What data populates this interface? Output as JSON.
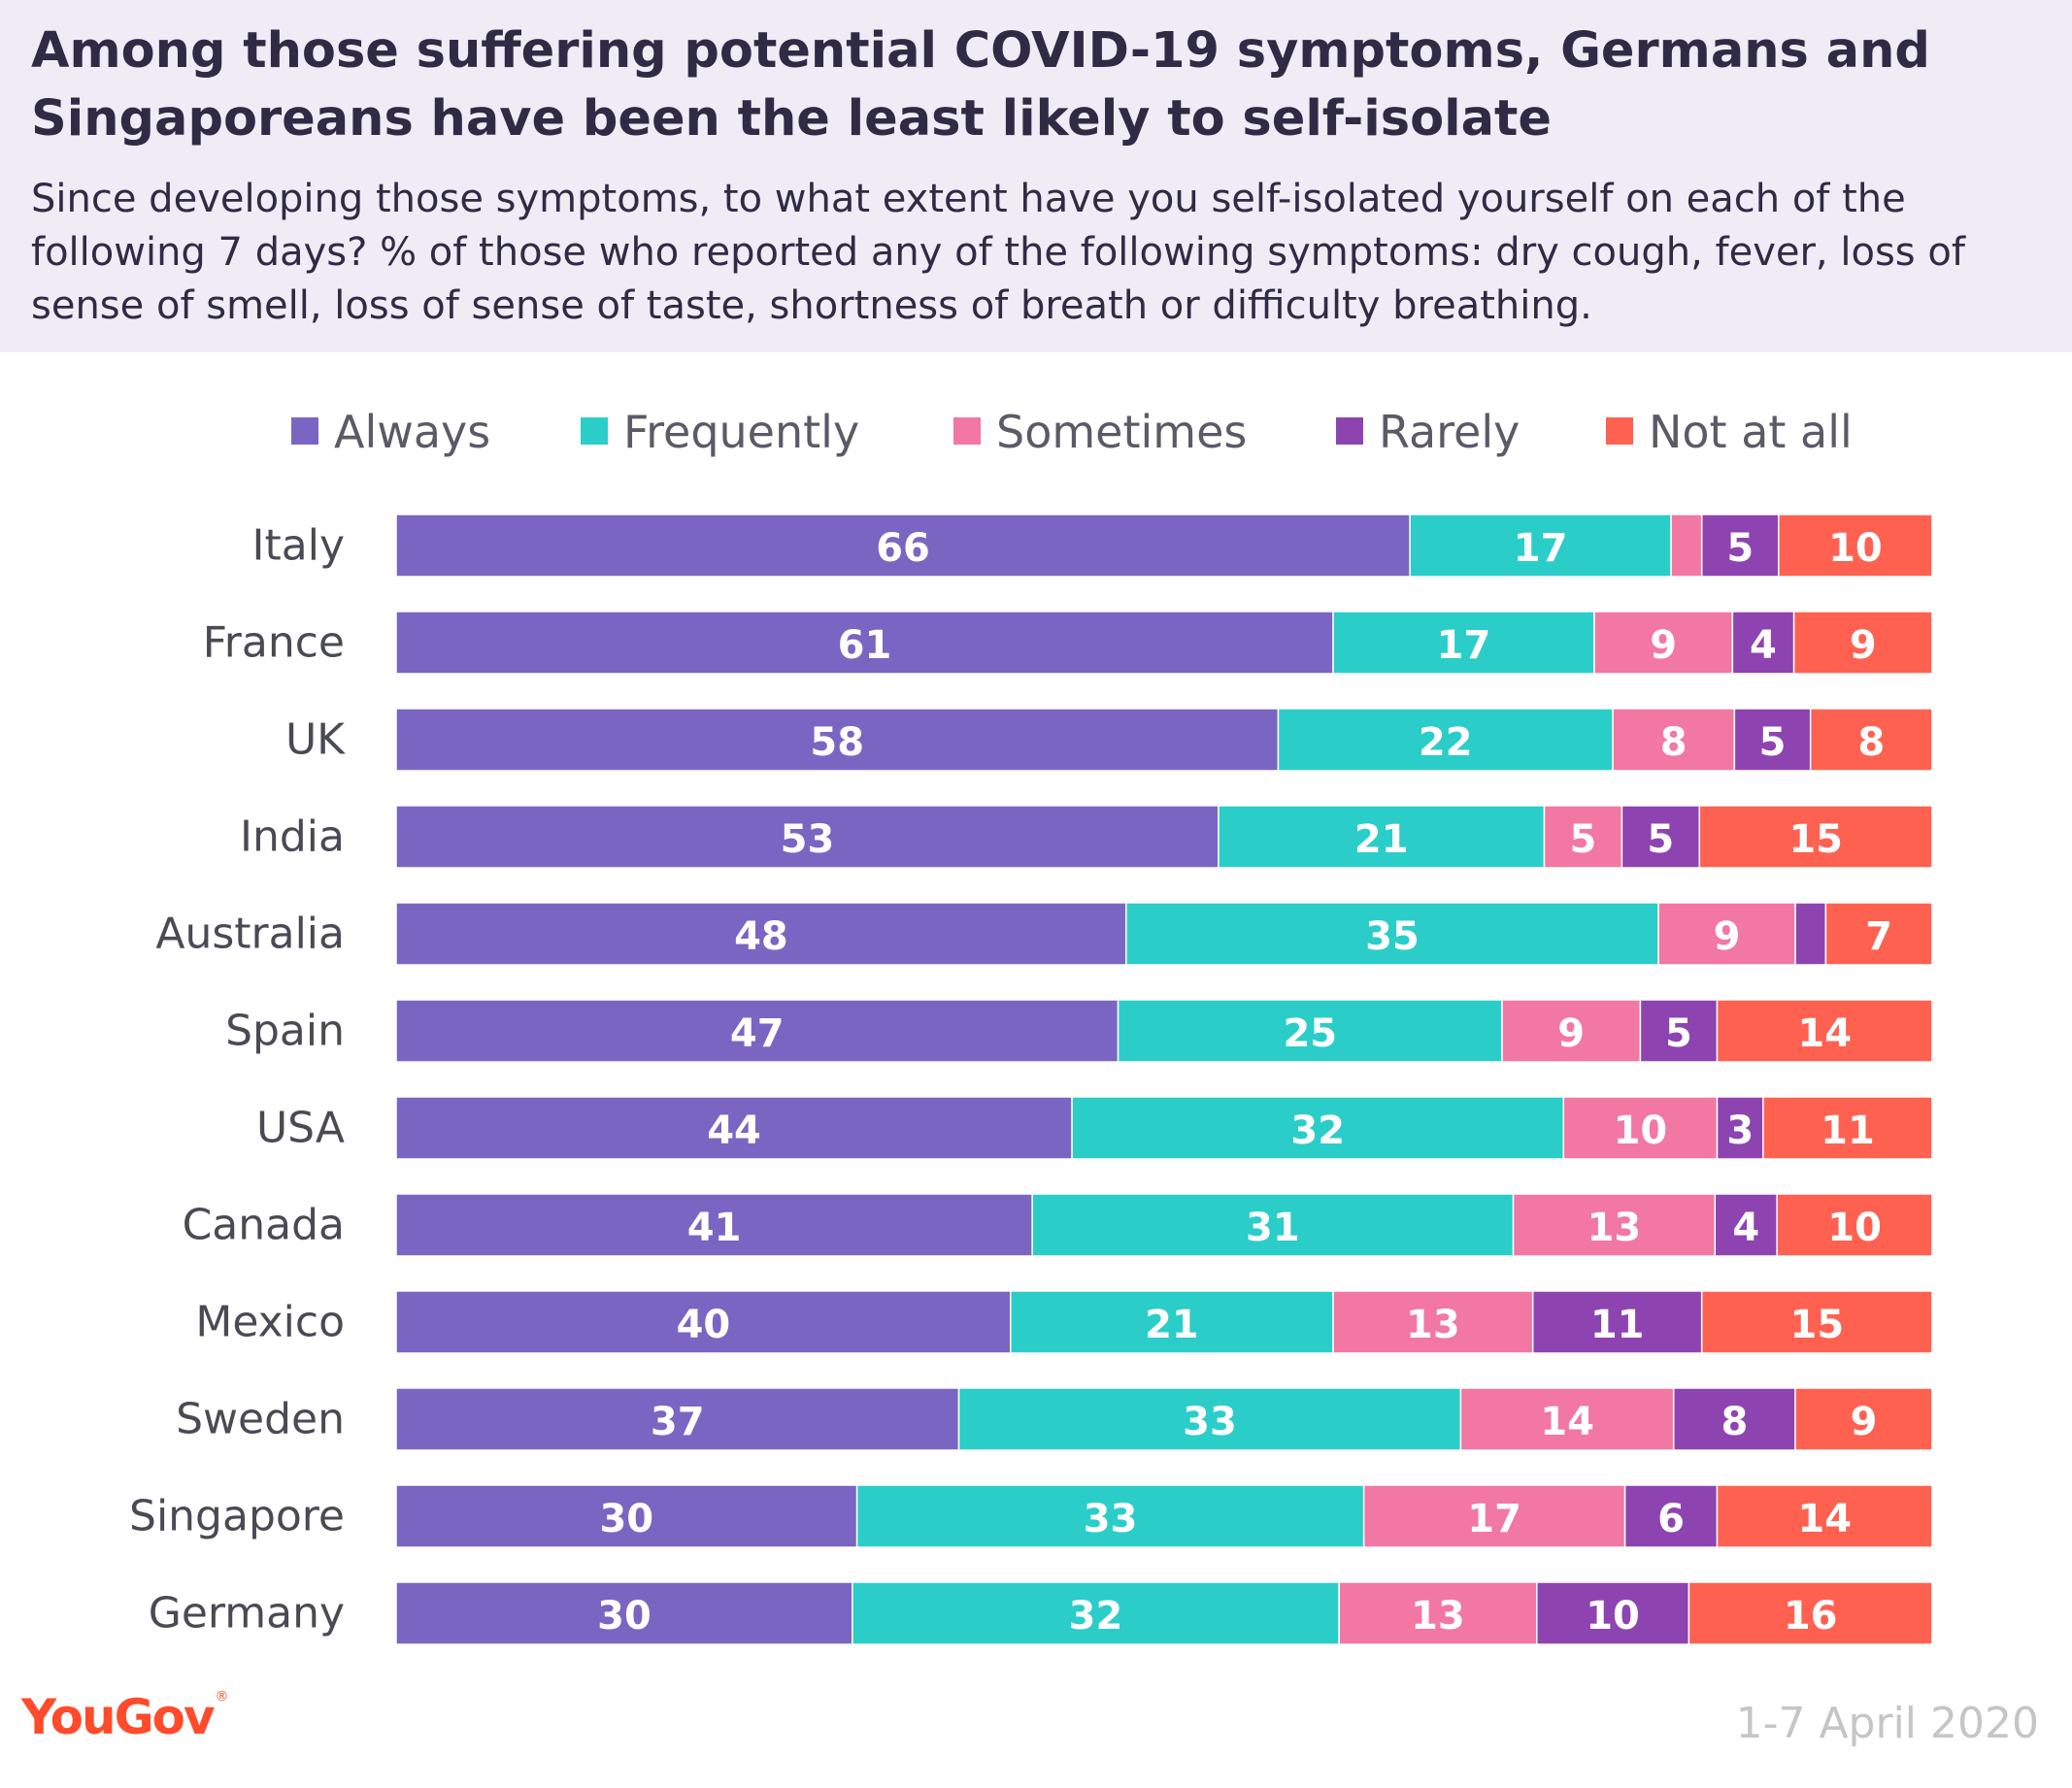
{
  "title": "Among those suffering potential COVID-19 symptoms, Germans and Singaporeans have been the least likely to self-isolate",
  "subtitle": "Since developing those symptoms, to what extent have you self-isolated yourself on each of the following 7 days? % of those who reported any of the following symptoms: dry cough, fever, loss of sense of smell, loss of sense of taste, shortness of breath or difficulty breathing.",
  "footer": {
    "logo": "YouGov",
    "logo_mark": "®",
    "date": "1-7 April 2020"
  },
  "legend": [
    {
      "label": "Always",
      "color": "#7b65c2"
    },
    {
      "label": "Frequently",
      "color": "#2bcdc9"
    },
    {
      "label": "Sometimes",
      "color": "#f277a3"
    },
    {
      "label": "Rarely",
      "color": "#8e44b0"
    },
    {
      "label": "Not at all",
      "color": "#ff6150"
    }
  ],
  "chart_data": {
    "type": "bar",
    "orientation": "horizontal",
    "stacked": true,
    "title": "Among those suffering potential COVID-19 symptoms, Germans and Singaporeans have been the least likely to self-isolate",
    "xlabel": "",
    "ylabel": "",
    "legend_position": "top",
    "grid": false,
    "categories": [
      "Italy",
      "France",
      "UK",
      "India",
      "Australia",
      "Spain",
      "USA",
      "Canada",
      "Mexico",
      "Sweden",
      "Singapore",
      "Germany"
    ],
    "series": [
      {
        "name": "Always",
        "color": "#7b65c2",
        "values": [
          66,
          61,
          58,
          53,
          48,
          47,
          44,
          41,
          40,
          37,
          30,
          30
        ],
        "labels": [
          "66",
          "61",
          "58",
          "53",
          "48",
          "47",
          "44",
          "41",
          "40",
          "37",
          "30",
          "30"
        ]
      },
      {
        "name": "Frequently",
        "color": "#2bcdc9",
        "values": [
          17,
          17,
          22,
          21,
          35,
          25,
          32,
          31,
          21,
          33,
          33,
          32
        ],
        "labels": [
          "17",
          "17",
          "22",
          "21",
          "35",
          "25",
          "32",
          "31",
          "21",
          "33",
          "33",
          "32"
        ]
      },
      {
        "name": "Sometimes",
        "color": "#f277a3",
        "values": [
          2,
          9,
          8,
          5,
          9,
          9,
          10,
          13,
          13,
          14,
          17,
          13
        ],
        "labels": [
          "",
          "9",
          "8",
          "5",
          "9",
          "9",
          "10",
          "13",
          "13",
          "14",
          "17",
          "13"
        ]
      },
      {
        "name": "Rarely",
        "color": "#8e44b0",
        "values": [
          5,
          4,
          5,
          5,
          2,
          5,
          3,
          4,
          11,
          8,
          6,
          10
        ],
        "labels": [
          "5",
          "4",
          "5",
          "5",
          "",
          "5",
          "3",
          "4",
          "11",
          "8",
          "6",
          "10"
        ]
      },
      {
        "name": "Not at all",
        "color": "#ff6150",
        "values": [
          10,
          9,
          8,
          15,
          7,
          14,
          11,
          10,
          15,
          9,
          14,
          16
        ],
        "labels": [
          "10",
          "9",
          "8",
          "15",
          "7",
          "14",
          "11",
          "10",
          "15",
          "9",
          "14",
          "16"
        ]
      }
    ]
  }
}
